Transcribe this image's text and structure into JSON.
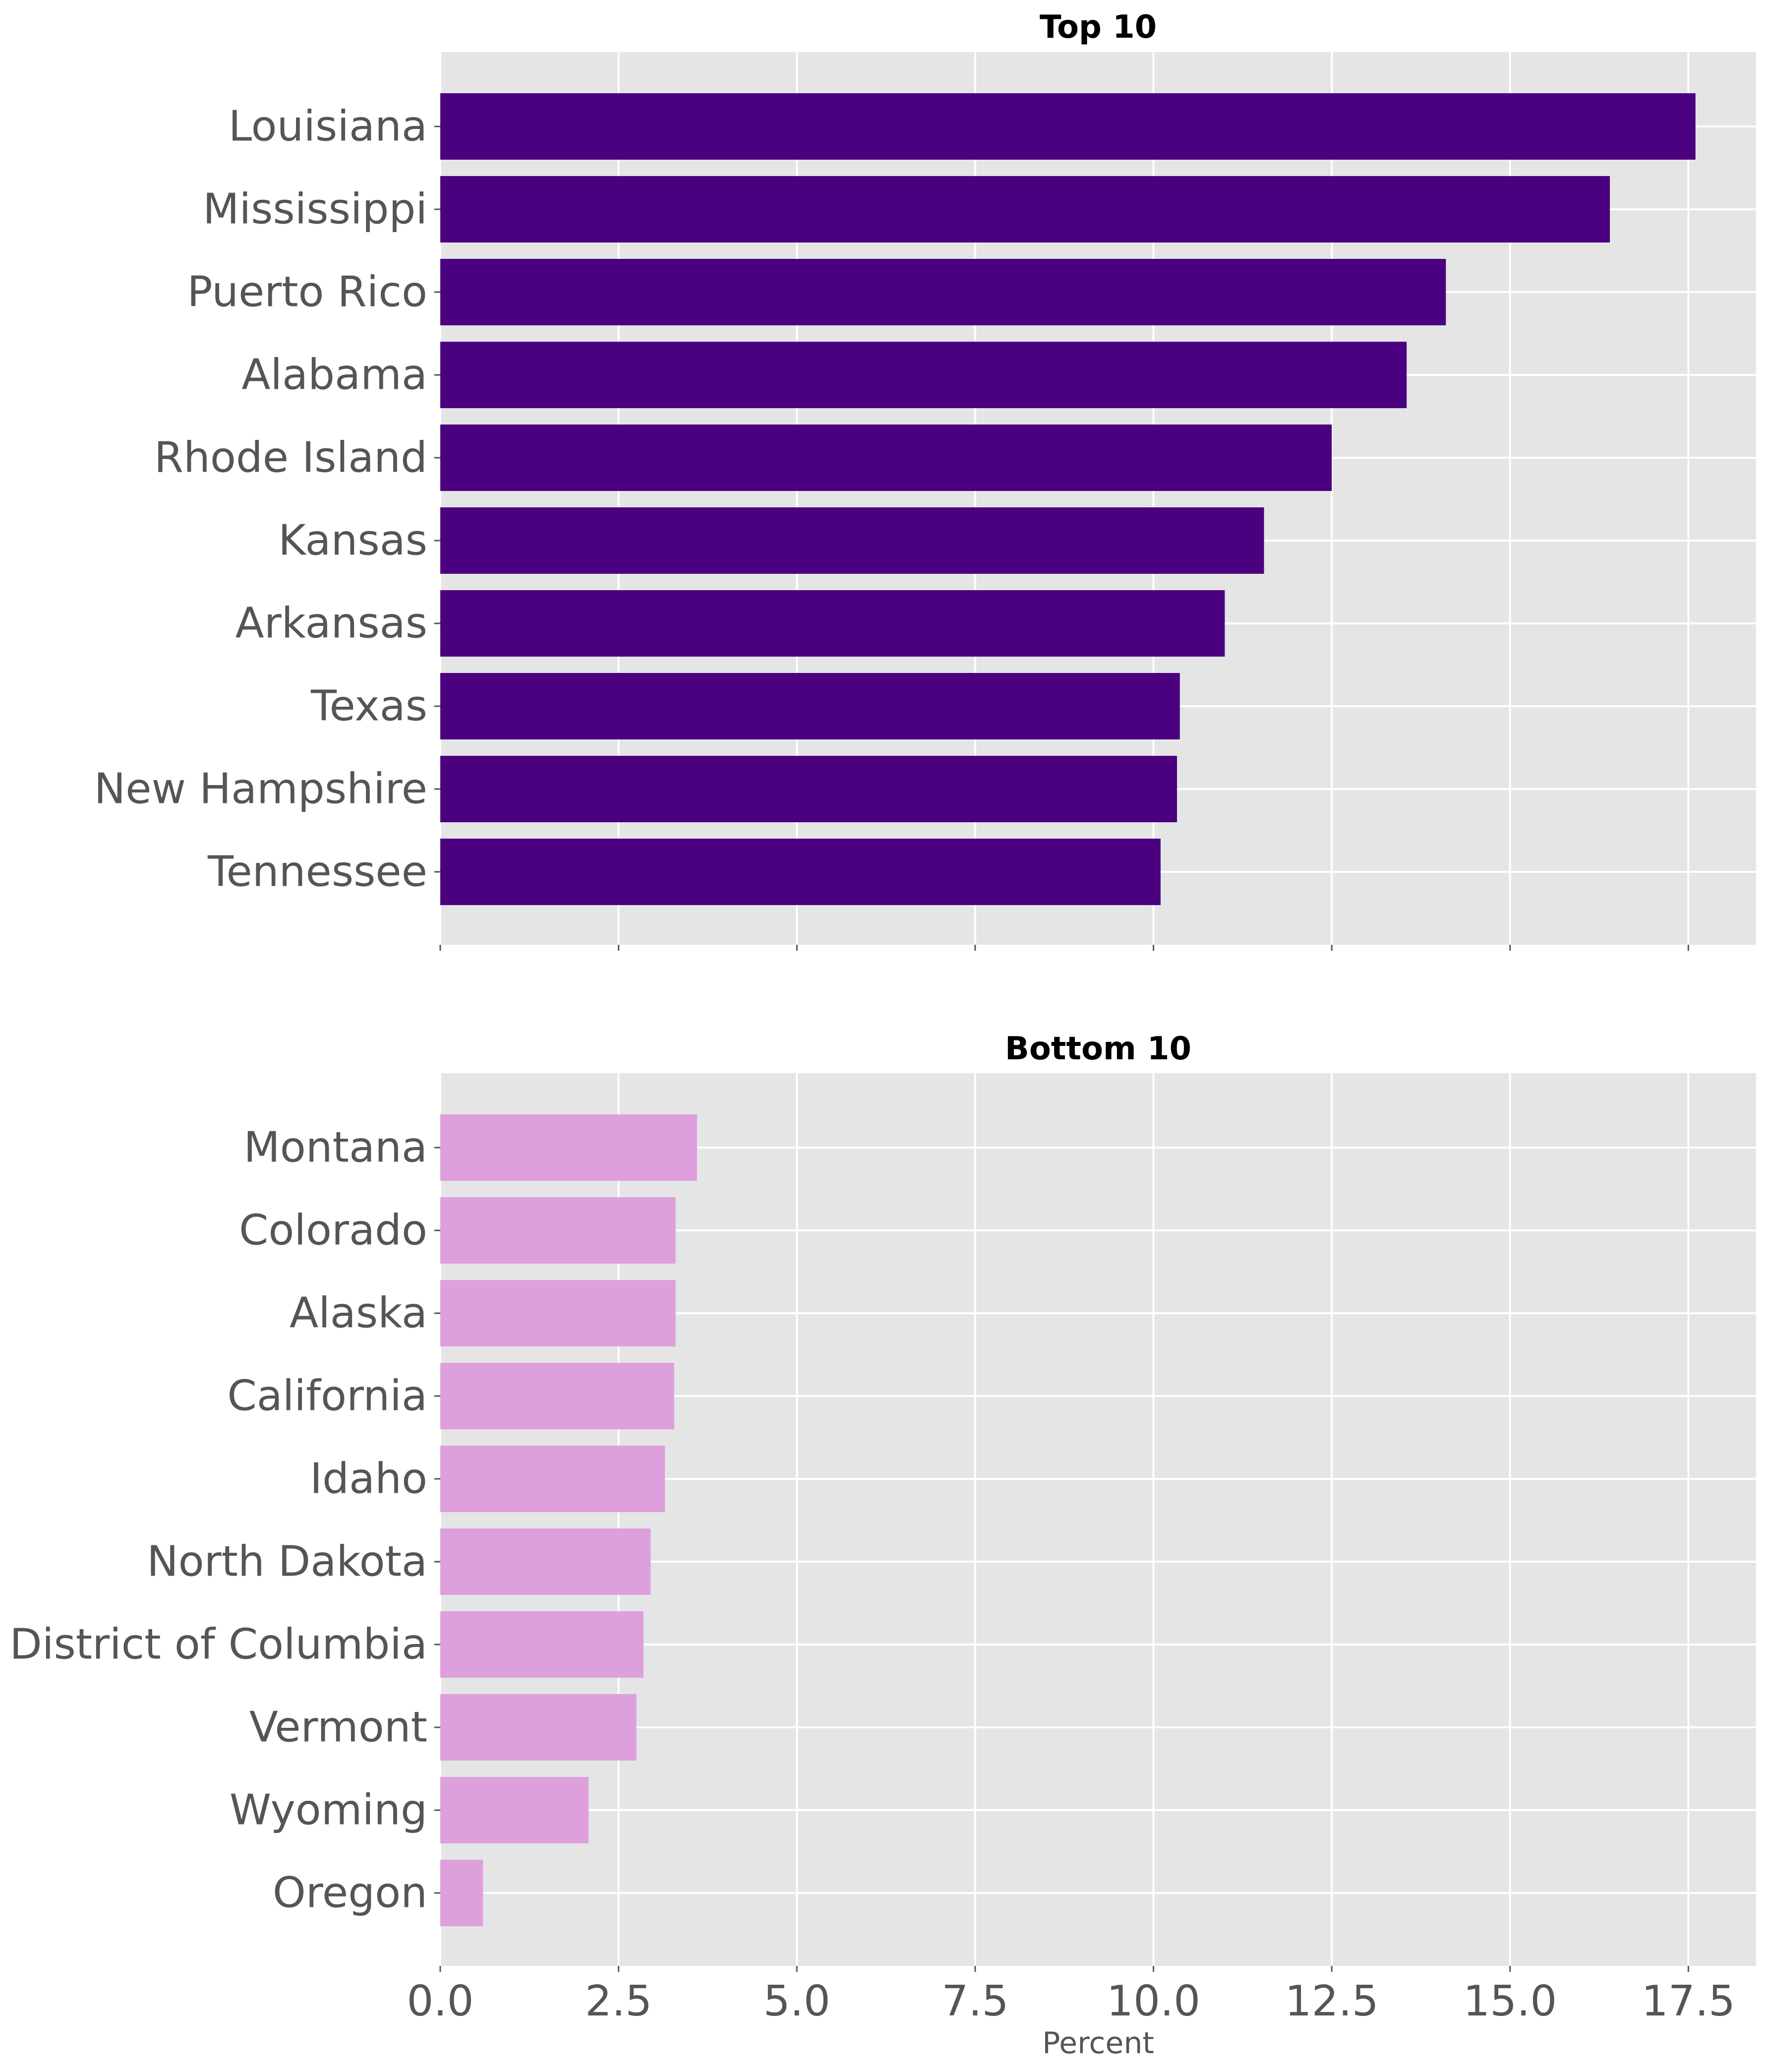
{
  "figure": {
    "background": "#ffffff",
    "axes_background": "#e5e5e5",
    "grid_color": "#ffffff"
  },
  "chart_data": [
    {
      "type": "bar",
      "orientation": "horizontal",
      "title": "Top 10",
      "categories": [
        "Louisiana",
        "Mississippi",
        "Puerto Rico",
        "Alabama",
        "Rhode Island",
        "Kansas",
        "Arkansas",
        "Texas",
        "New Hampshire",
        "Tennessee"
      ],
      "values": [
        17.6,
        16.4,
        14.1,
        13.55,
        12.5,
        11.55,
        11.0,
        10.37,
        10.33,
        10.1
      ],
      "color": "#4b0080",
      "xlim": [
        0,
        18.45
      ],
      "xticks": [
        0.0,
        2.5,
        5.0,
        7.5,
        10.0,
        12.5,
        15.0,
        17.5
      ],
      "xtick_labels_visible": false,
      "grid": true,
      "xlabel": ""
    },
    {
      "type": "bar",
      "orientation": "horizontal",
      "title": "Bottom 10",
      "categories": [
        "Montana",
        "Colorado",
        "Alaska",
        "California",
        "Idaho",
        "North Dakota",
        "District of Columbia",
        "Vermont",
        "Wyoming",
        "Oregon"
      ],
      "values": [
        3.6,
        3.3,
        3.3,
        3.28,
        3.15,
        2.95,
        2.85,
        2.75,
        2.08,
        0.6
      ],
      "color": "#dda0dd",
      "xlim": [
        0,
        18.45
      ],
      "xticks": [
        0.0,
        2.5,
        5.0,
        7.5,
        10.0,
        12.5,
        15.0,
        17.5
      ],
      "xtick_labels": [
        "0.0",
        "2.5",
        "5.0",
        "7.5",
        "10.0",
        "12.5",
        "15.0",
        "17.5"
      ],
      "xtick_labels_visible": true,
      "grid": true,
      "xlabel": "Percent"
    }
  ]
}
